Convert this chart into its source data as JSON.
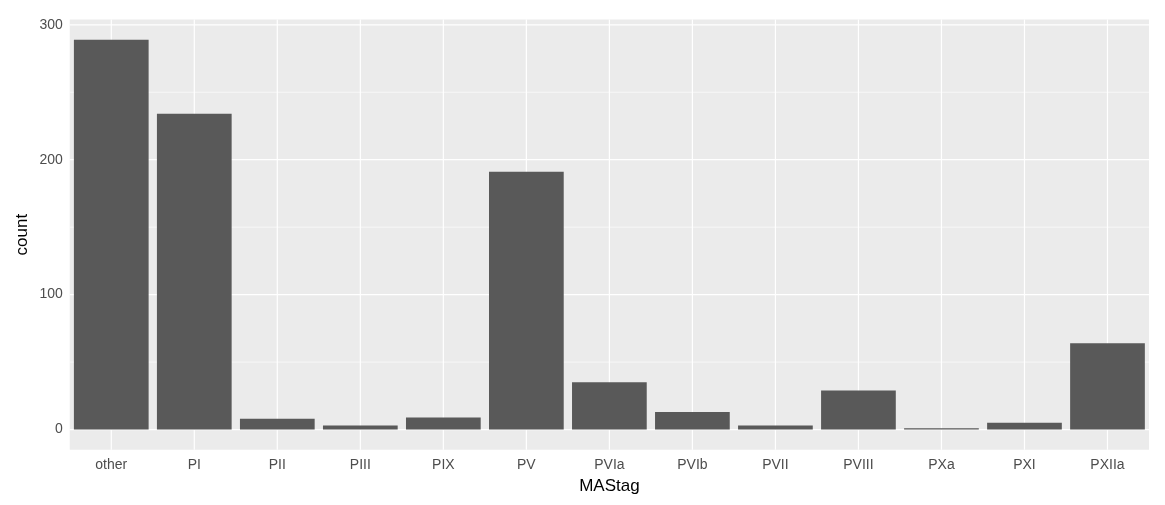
{
  "chart_data": {
    "type": "bar",
    "xlabel": "MAStag",
    "ylabel": "count",
    "categories": [
      "other",
      "PI",
      "PII",
      "PIII",
      "PIX",
      "PV",
      "PVIa",
      "PVIb",
      "PVII",
      "PVIII",
      "PXa",
      "PXI",
      "PXIIa"
    ],
    "values": [
      289,
      234,
      8,
      3,
      9,
      191,
      35,
      13,
      3,
      29,
      1,
      5,
      64
    ],
    "color": "#595959",
    "ylim": [
      -15,
      304
    ],
    "yticks": [
      0,
      100,
      200,
      300
    ],
    "grid": true,
    "legend": false
  }
}
